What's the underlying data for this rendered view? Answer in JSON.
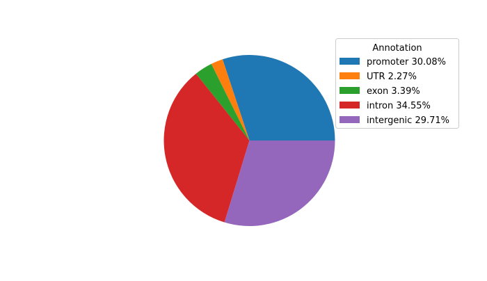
{
  "chart_data": {
    "type": "pie",
    "legend_title": "Annotation",
    "legend_placement": "top-right",
    "start_angle_deg": 0,
    "direction": "counterclockwise",
    "slices": [
      {
        "label": "promoter 30.08%",
        "category": "promoter",
        "value": 30.08,
        "color": "#1f77b4"
      },
      {
        "label": "UTR 2.27%",
        "category": "UTR",
        "value": 2.27,
        "color": "#ff7f0e"
      },
      {
        "label": "exon 3.39%",
        "category": "exon",
        "value": 3.39,
        "color": "#2ca02c"
      },
      {
        "label": "intron 34.55%",
        "category": "intron",
        "value": 34.55,
        "color": "#d62728"
      },
      {
        "label": "intergenic 29.71%",
        "category": "intergenic",
        "value": 29.71,
        "color": "#9467bd"
      }
    ]
  }
}
